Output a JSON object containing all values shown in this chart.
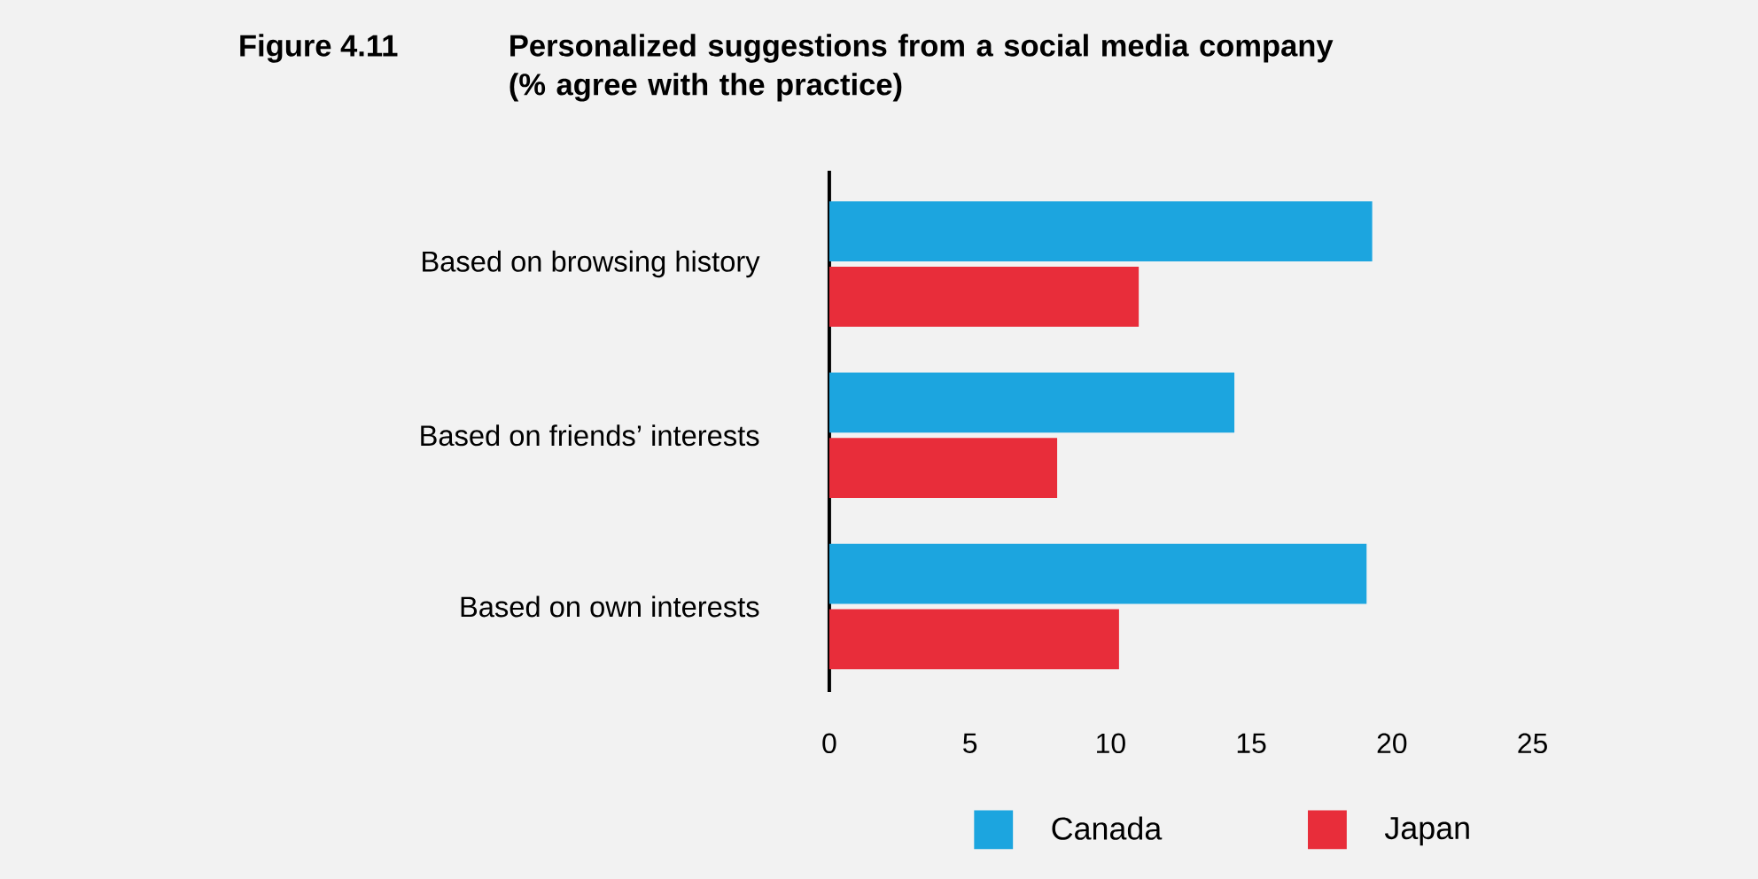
{
  "chart_data": {
    "type": "bar",
    "orientation": "horizontal",
    "title": "Personalized suggestions from a social media company (% agree with the practice)",
    "annotations": [
      "Figure 4.11"
    ],
    "categories": [
      "Based on browsing history",
      "Based on friends’ interests",
      "Based on own interests"
    ],
    "series": [
      {
        "name": "Canada",
        "color": "#1ca5df",
        "values": [
          19.3,
          14.4,
          19.1
        ]
      },
      {
        "name": "Japan",
        "color": "#e82d3a",
        "values": [
          11.0,
          8.1,
          10.3
        ]
      }
    ],
    "xlim": [
      0,
      25
    ],
    "xticks": [
      0,
      5,
      10,
      15,
      20,
      25
    ],
    "legend": "bottom"
  }
}
